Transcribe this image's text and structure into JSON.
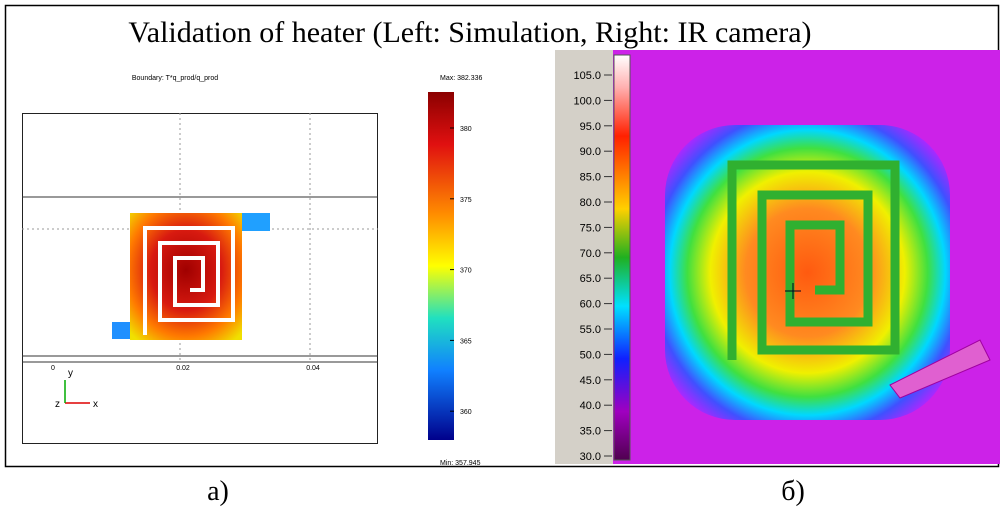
{
  "title": "Validation of heater (Left: Simulation, Right: IR camera)",
  "simulation": {
    "boundary_label": "Boundary: T*q_prod/q_prod",
    "max_label": "Max: 382.336",
    "min_label": "Min: 357.945",
    "colorbar_ticks": [
      "380",
      "375",
      "370",
      "365",
      "360"
    ],
    "x_ticks": [
      "0",
      "0.02",
      "0.04"
    ],
    "axis_labels": {
      "y": "y",
      "z": "z",
      "x": "x"
    }
  },
  "ir_camera": {
    "scale_ticks": [
      "105.0",
      "100.0",
      "95.0",
      "90.0",
      "85.0",
      "80.0",
      "75.0",
      "70.0",
      "65.0",
      "60.0",
      "55.0",
      "50.0",
      "45.0",
      "40.0",
      "35.0",
      "30.0"
    ]
  },
  "captions": {
    "left": "a)",
    "right": "б)"
  }
}
